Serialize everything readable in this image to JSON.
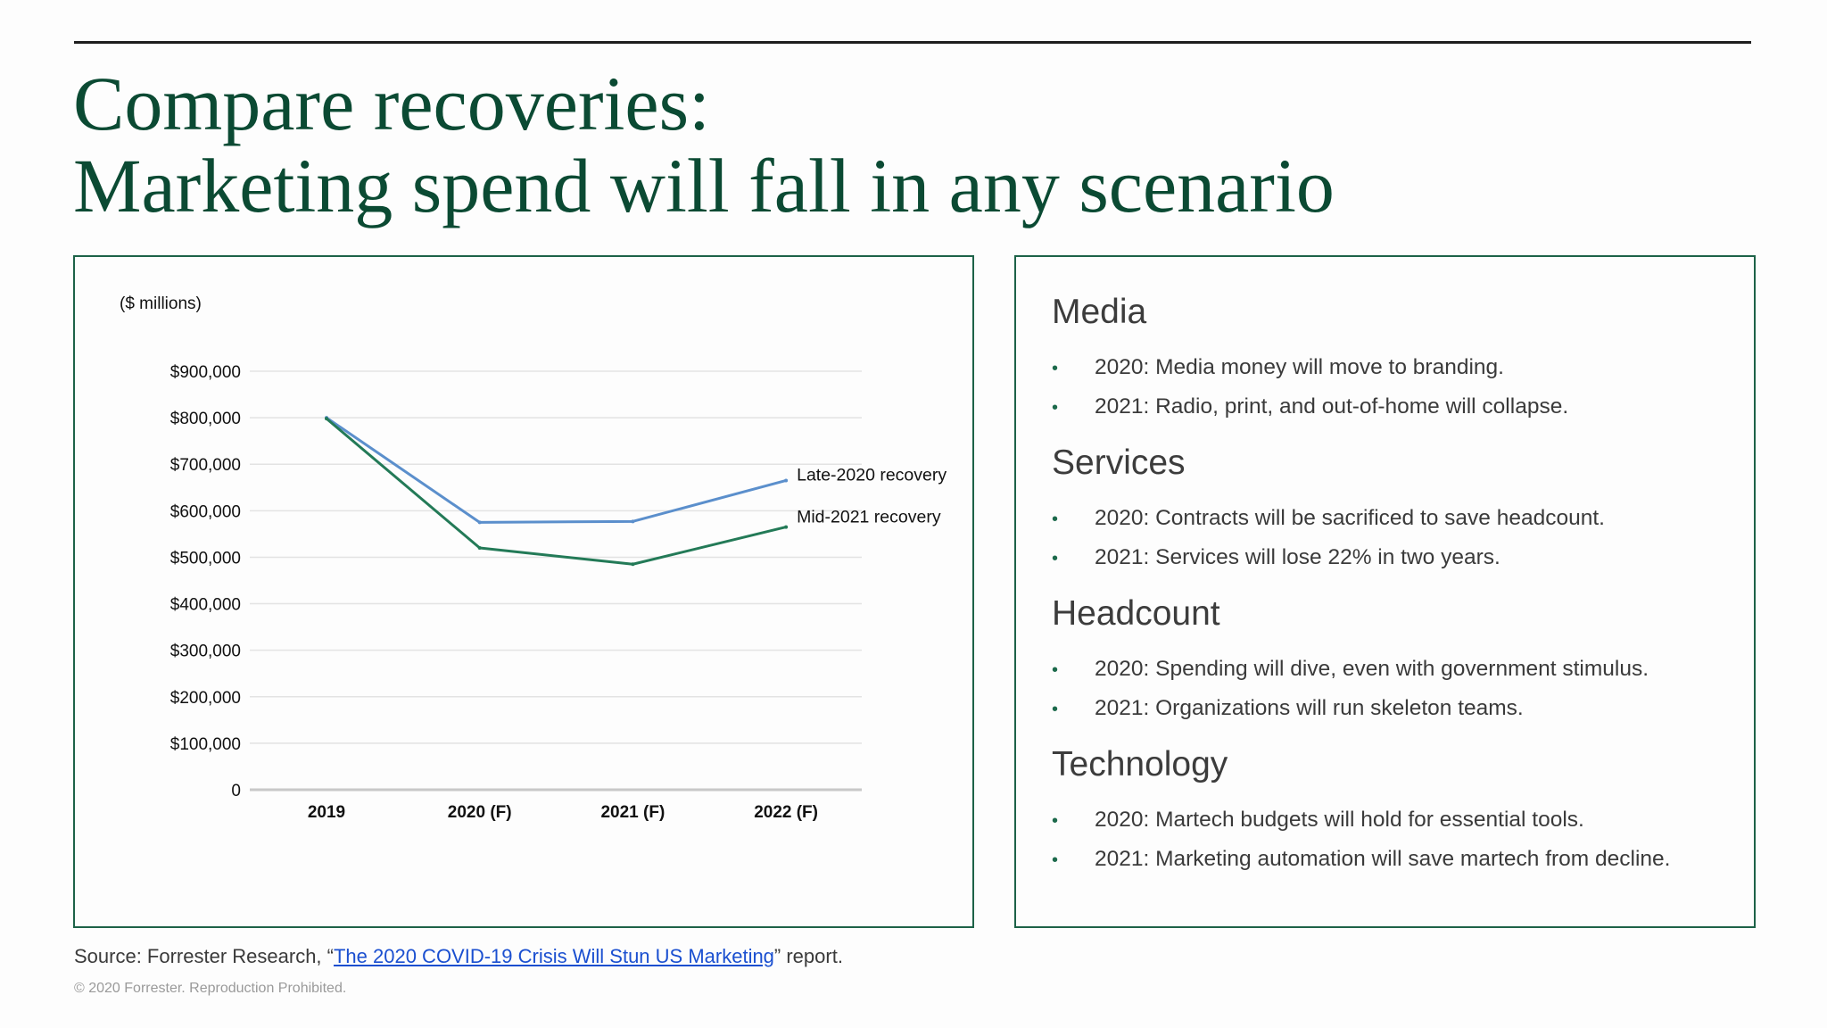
{
  "slide": {
    "title_line1": "Compare recoveries:",
    "title_line2": "Marketing spend will fall in any scenario"
  },
  "chart_data": {
    "type": "line",
    "unit_label": "($ millions)",
    "categories": [
      "2019",
      "2020 (F)",
      "2021 (F)",
      "2022 (F)"
    ],
    "y_ticks": [
      "0",
      "$100,000",
      "$200,000",
      "$300,000",
      "$400,000",
      "$500,000",
      "$600,000",
      "$700,000",
      "$800,000",
      "$900,000"
    ],
    "ylim": [
      0,
      900000
    ],
    "grid": true,
    "series": [
      {
        "name": "Late-2020 recovery",
        "color": "#5b8fcc",
        "values": [
          800000,
          575000,
          577000,
          665000
        ]
      },
      {
        "name": "Mid-2021 recovery",
        "color": "#237a57",
        "values": [
          798000,
          520000,
          485000,
          565000
        ]
      }
    ]
  },
  "sections": [
    {
      "title": "Media",
      "bullets": [
        "2020: Media money will move to branding.",
        "2021: Radio, print, and out-of-home will collapse."
      ]
    },
    {
      "title": "Services",
      "bullets": [
        "2020: Contracts will be sacrificed to save headcount.",
        "2021: Services will lose 22% in two years."
      ]
    },
    {
      "title": "Headcount",
      "bullets": [
        "2020: Spending will dive, even with government stimulus.",
        "2021: Organizations will run skeleton teams."
      ]
    },
    {
      "title": "Technology",
      "bullets": [
        "2020: Martech budgets will hold for essential tools.",
        "2021: Marketing automation will save martech from decline."
      ]
    }
  ],
  "footer": {
    "source_prefix": "Source: Forrester Research, “",
    "source_link": "The 2020 COVID-19 Crisis Will Stun US Marketing",
    "source_suffix": "” report.",
    "copyright": "© 2020 Forrester. Reproduction Prohibited."
  },
  "colors": {
    "brand_green": "#0b4a33",
    "panel_border": "#1d6248",
    "link": "#1a4fd0"
  }
}
